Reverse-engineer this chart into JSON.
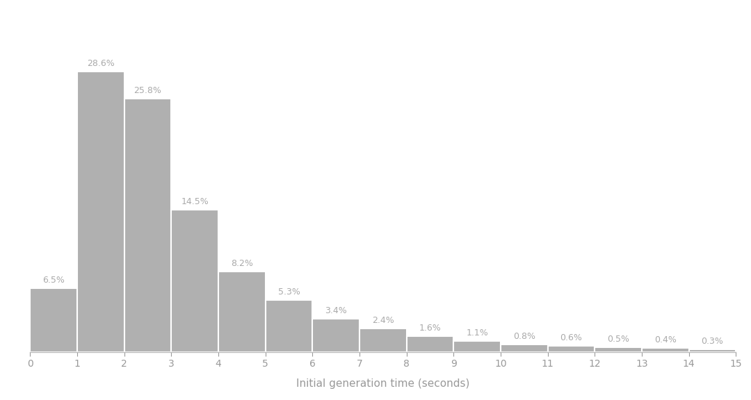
{
  "categories": [
    0,
    1,
    2,
    3,
    4,
    5,
    6,
    7,
    8,
    9,
    10,
    11,
    12,
    13,
    14
  ],
  "values": [
    6.5,
    28.6,
    25.8,
    14.5,
    8.2,
    5.3,
    3.4,
    2.4,
    1.6,
    1.1,
    0.8,
    0.6,
    0.5,
    0.4,
    0.3
  ],
  "labels": [
    "6.5%",
    "28.6%",
    "25.8%",
    "14.5%",
    "8.2%",
    "5.3%",
    "3.4%",
    "2.4%",
    "1.6%",
    "1.1%",
    "0.8%",
    "0.6%",
    "0.5%",
    "0.4%",
    "0.3%"
  ],
  "bar_color": "#b0b0b0",
  "bar_edge_color": "#ffffff",
  "background_color": "#ffffff",
  "xlabel": "Initial generation time (seconds)",
  "xlabel_fontsize": 11,
  "label_color": "#aaaaaa",
  "label_fontsize": 9,
  "xlim": [
    0,
    15
  ],
  "ylim": [
    0,
    33
  ],
  "xticks": [
    0,
    1,
    2,
    3,
    4,
    5,
    6,
    7,
    8,
    9,
    10,
    11,
    12,
    13,
    14,
    15
  ]
}
